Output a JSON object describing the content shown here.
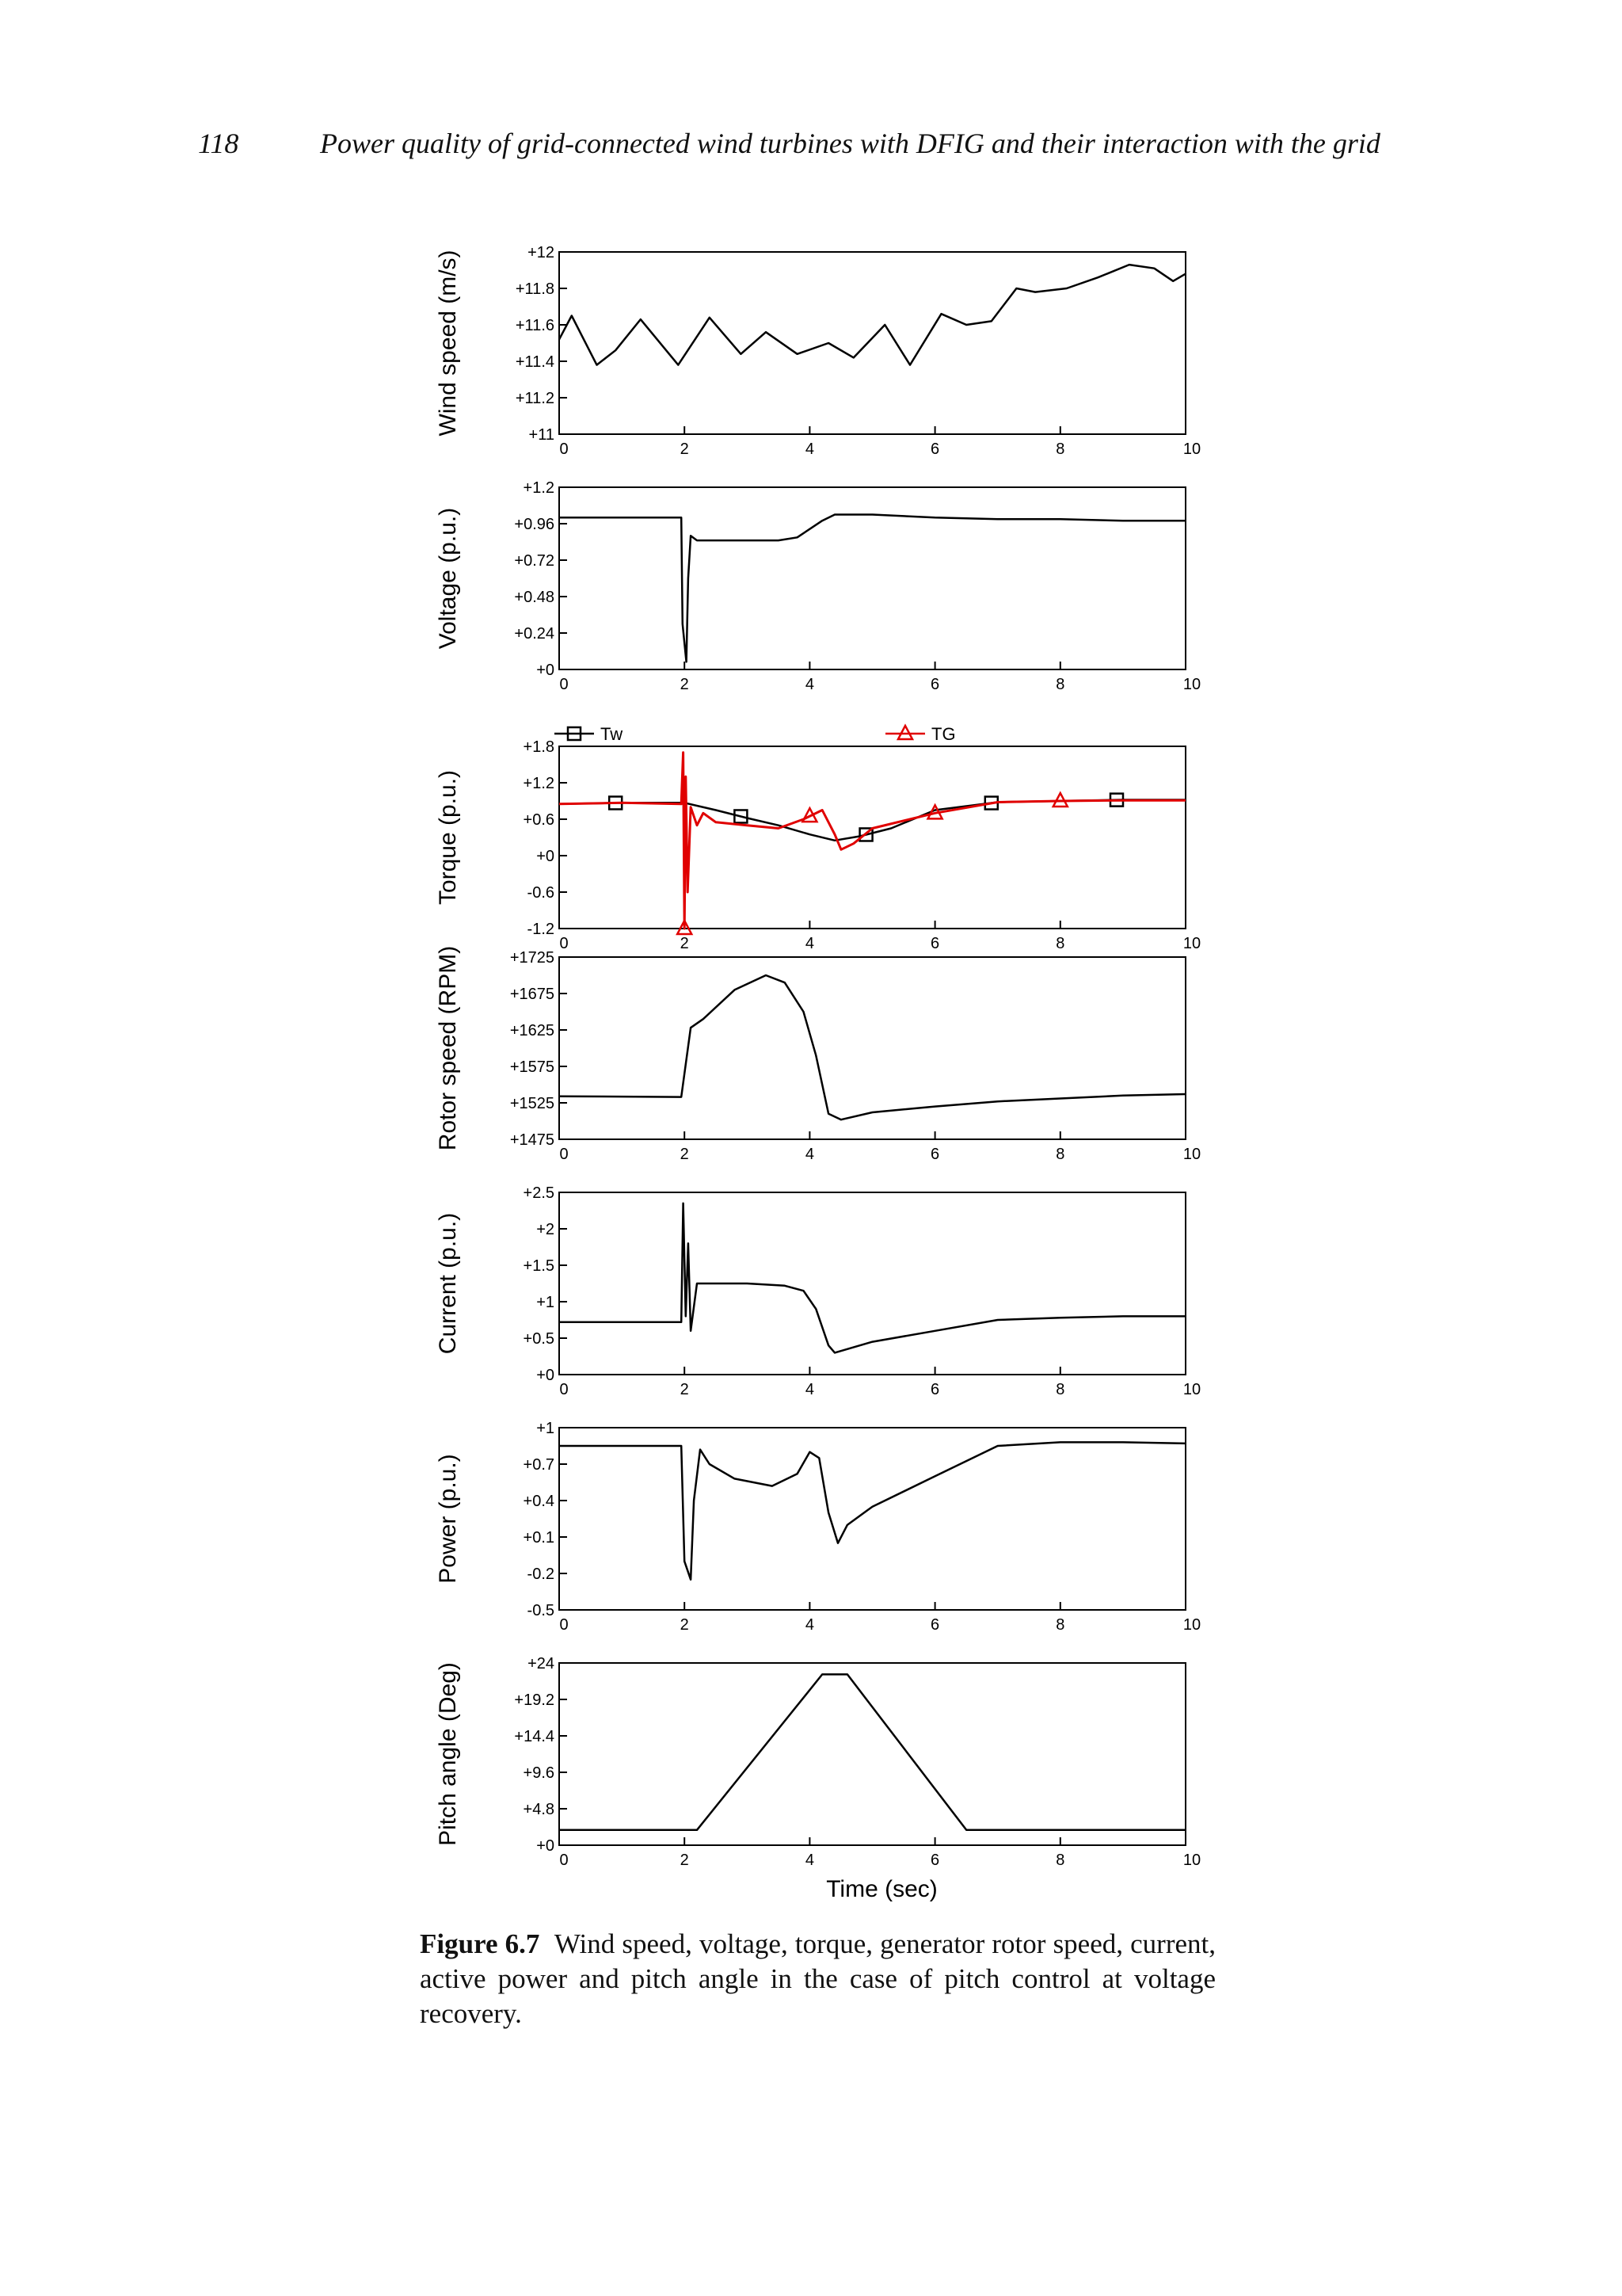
{
  "header": {
    "page_number": "118",
    "running_title": "Power quality of grid-connected wind turbines with DFIG and their interaction with the grid"
  },
  "caption": {
    "label": "Figure 6.7",
    "text": "Wind speed, voltage, torque, generator rotor speed, current, active power and pitch angle in the case of pitch control at voltage recovery."
  },
  "chart_data": [
    {
      "type": "line",
      "ylabel": "Wind speed (m/s)",
      "xlim": [
        0,
        10
      ],
      "ylim": [
        11,
        12
      ],
      "xticks": [
        0,
        2,
        4,
        6,
        8,
        10
      ],
      "yticks": [
        "+11",
        "+11.2",
        "+11.4",
        "+11.6",
        "+11.8",
        "+12"
      ],
      "color": "#000000",
      "series": [
        {
          "x": [
            0,
            0.2,
            0.6,
            0.9,
            1.3,
            1.9,
            2.4,
            2.9,
            3.3,
            3.8,
            4.3,
            4.7,
            5.2,
            5.6,
            6.1,
            6.5,
            6.9,
            7.3,
            7.6,
            8.1,
            8.6,
            9.1,
            9.5,
            9.8,
            10
          ],
          "y": [
            11.52,
            11.65,
            11.38,
            11.46,
            11.63,
            11.38,
            11.64,
            11.44,
            11.56,
            11.44,
            11.5,
            11.42,
            11.6,
            11.38,
            11.66,
            11.6,
            11.62,
            11.8,
            11.78,
            11.8,
            11.86,
            11.93,
            11.91,
            11.84,
            11.88
          ]
        }
      ]
    },
    {
      "type": "line",
      "ylabel": "Voltage (p.u.)",
      "xlim": [
        0,
        10
      ],
      "ylim": [
        0,
        1.2
      ],
      "xticks": [
        0,
        2,
        4,
        6,
        8,
        10
      ],
      "yticks": [
        "+0",
        "+0.24",
        "+0.48",
        "+0.72",
        "+0.96",
        "+1.2"
      ],
      "color": "#000000",
      "series": [
        {
          "x": [
            0,
            1.95,
            1.97,
            2.03,
            2.06,
            2.1,
            2.2,
            2.5,
            3.5,
            3.8,
            4.2,
            4.4,
            5,
            6,
            7,
            8,
            9,
            10
          ],
          "y": [
            1.0,
            1.0,
            0.3,
            0.05,
            0.6,
            0.88,
            0.85,
            0.85,
            0.85,
            0.87,
            0.98,
            1.02,
            1.02,
            1.0,
            0.99,
            0.99,
            0.98,
            0.98
          ]
        }
      ]
    },
    {
      "type": "line",
      "ylabel": "Torque (p.u.)",
      "xlim": [
        0,
        10
      ],
      "ylim": [
        -1.2,
        1.8
      ],
      "xticks": [
        0,
        2,
        4,
        6,
        8,
        10
      ],
      "yticks": [
        "-1.2",
        "-0.6",
        "+0",
        "+0.6",
        "+1.2",
        "+1.8"
      ],
      "legend": [
        "Tw",
        "TG"
      ],
      "series": [
        {
          "name": "Tw",
          "color": "#000000",
          "marker": "square",
          "markers_x": [
            0.9,
            2.9,
            4.9,
            6.9,
            8.9
          ],
          "x": [
            0,
            1,
            2,
            2.5,
            3,
            3.5,
            4,
            4.4,
            4.8,
            5.3,
            6,
            7,
            8,
            9,
            10
          ],
          "y": [
            0.85,
            0.87,
            0.87,
            0.75,
            0.62,
            0.5,
            0.35,
            0.25,
            0.32,
            0.45,
            0.75,
            0.88,
            0.9,
            0.92,
            0.92
          ]
        },
        {
          "name": "TG",
          "color": "#e00000",
          "marker": "triangle",
          "markers_x": [
            2,
            4,
            6,
            8
          ],
          "x": [
            0,
            1,
            1.95,
            1.98,
            2.0,
            2.02,
            2.05,
            2.1,
            2.2,
            2.3,
            2.5,
            3.0,
            3.5,
            3.9,
            4.2,
            4.4,
            4.5,
            4.7,
            5.0,
            6.0,
            7.0,
            8.0,
            9.0,
            10
          ],
          "y": [
            0.85,
            0.87,
            0.85,
            1.7,
            -1.2,
            1.3,
            -0.6,
            0.8,
            0.5,
            0.7,
            0.55,
            0.5,
            0.45,
            0.6,
            0.75,
            0.35,
            0.1,
            0.2,
            0.45,
            0.7,
            0.88,
            0.9,
            0.91,
            0.91
          ]
        }
      ]
    },
    {
      "type": "line",
      "ylabel": "Rotor speed (RPM)",
      "xlim": [
        0,
        10
      ],
      "ylim": [
        1475,
        1725
      ],
      "xticks": [
        0,
        2,
        4,
        6,
        8,
        10
      ],
      "yticks": [
        "+1475",
        "+1525",
        "+1575",
        "+1625",
        "+1675",
        "+1725"
      ],
      "color": "#000000",
      "series": [
        {
          "x": [
            0,
            1.95,
            2.1,
            2.3,
            2.8,
            3.3,
            3.6,
            3.9,
            4.1,
            4.3,
            4.5,
            5,
            6,
            7,
            8,
            9,
            10
          ],
          "y": [
            1534,
            1533,
            1628,
            1640,
            1680,
            1700,
            1690,
            1650,
            1590,
            1510,
            1502,
            1512,
            1520,
            1527,
            1531,
            1535,
            1537
          ]
        }
      ]
    },
    {
      "type": "line",
      "ylabel": "Current (p.u.)",
      "xlim": [
        0,
        10
      ],
      "ylim": [
        0,
        2.5
      ],
      "xticks": [
        0,
        2,
        4,
        6,
        8,
        10
      ],
      "yticks": [
        "+0",
        "+0.5",
        "+1",
        "+1.5",
        "+2",
        "+2.5"
      ],
      "color": "#000000",
      "series": [
        {
          "x": [
            0,
            1,
            1.95,
            1.98,
            2.02,
            2.06,
            2.1,
            2.2,
            2.4,
            3,
            3.6,
            3.9,
            4.1,
            4.3,
            4.4,
            5,
            6,
            7,
            8,
            9,
            10
          ],
          "y": [
            0.72,
            0.72,
            0.72,
            2.35,
            0.8,
            1.8,
            0.6,
            1.25,
            1.25,
            1.25,
            1.22,
            1.15,
            0.9,
            0.4,
            0.3,
            0.45,
            0.6,
            0.75,
            0.78,
            0.8,
            0.8
          ]
        }
      ]
    },
    {
      "type": "line",
      "ylabel": "Power (p.u.)",
      "xlim": [
        0,
        10
      ],
      "ylim": [
        -0.5,
        1
      ],
      "xticks": [
        0,
        2,
        4,
        6,
        8,
        10
      ],
      "yticks": [
        "-0.5",
        "-0.2",
        "+0.1",
        "+0.4",
        "+0.7",
        "+1"
      ],
      "color": "#000000",
      "series": [
        {
          "x": [
            0,
            1,
            1.95,
            2.0,
            2.1,
            2.15,
            2.25,
            2.4,
            2.8,
            3.4,
            3.8,
            4.0,
            4.15,
            4.3,
            4.45,
            4.6,
            5,
            6,
            7,
            8,
            9,
            10
          ],
          "y": [
            0.85,
            0.85,
            0.85,
            -0.1,
            -0.25,
            0.4,
            0.82,
            0.7,
            0.58,
            0.52,
            0.62,
            0.8,
            0.75,
            0.3,
            0.05,
            0.2,
            0.35,
            0.6,
            0.85,
            0.88,
            0.88,
            0.87
          ]
        }
      ]
    },
    {
      "type": "line",
      "ylabel": "Pitch angle (Deg)",
      "xlabel": "Time (sec)",
      "xlim": [
        0,
        10
      ],
      "ylim": [
        0,
        24
      ],
      "xticks": [
        0,
        2,
        4,
        6,
        8,
        10
      ],
      "yticks": [
        "+0",
        "+4.8",
        "+9.6",
        "+14.4",
        "+19.2",
        "+24"
      ],
      "color": "#000000",
      "series": [
        {
          "x": [
            0,
            2.2,
            4.2,
            4.6,
            6.5,
            10
          ],
          "y": [
            2,
            2,
            22.5,
            22.5,
            2,
            2
          ]
        }
      ]
    }
  ]
}
